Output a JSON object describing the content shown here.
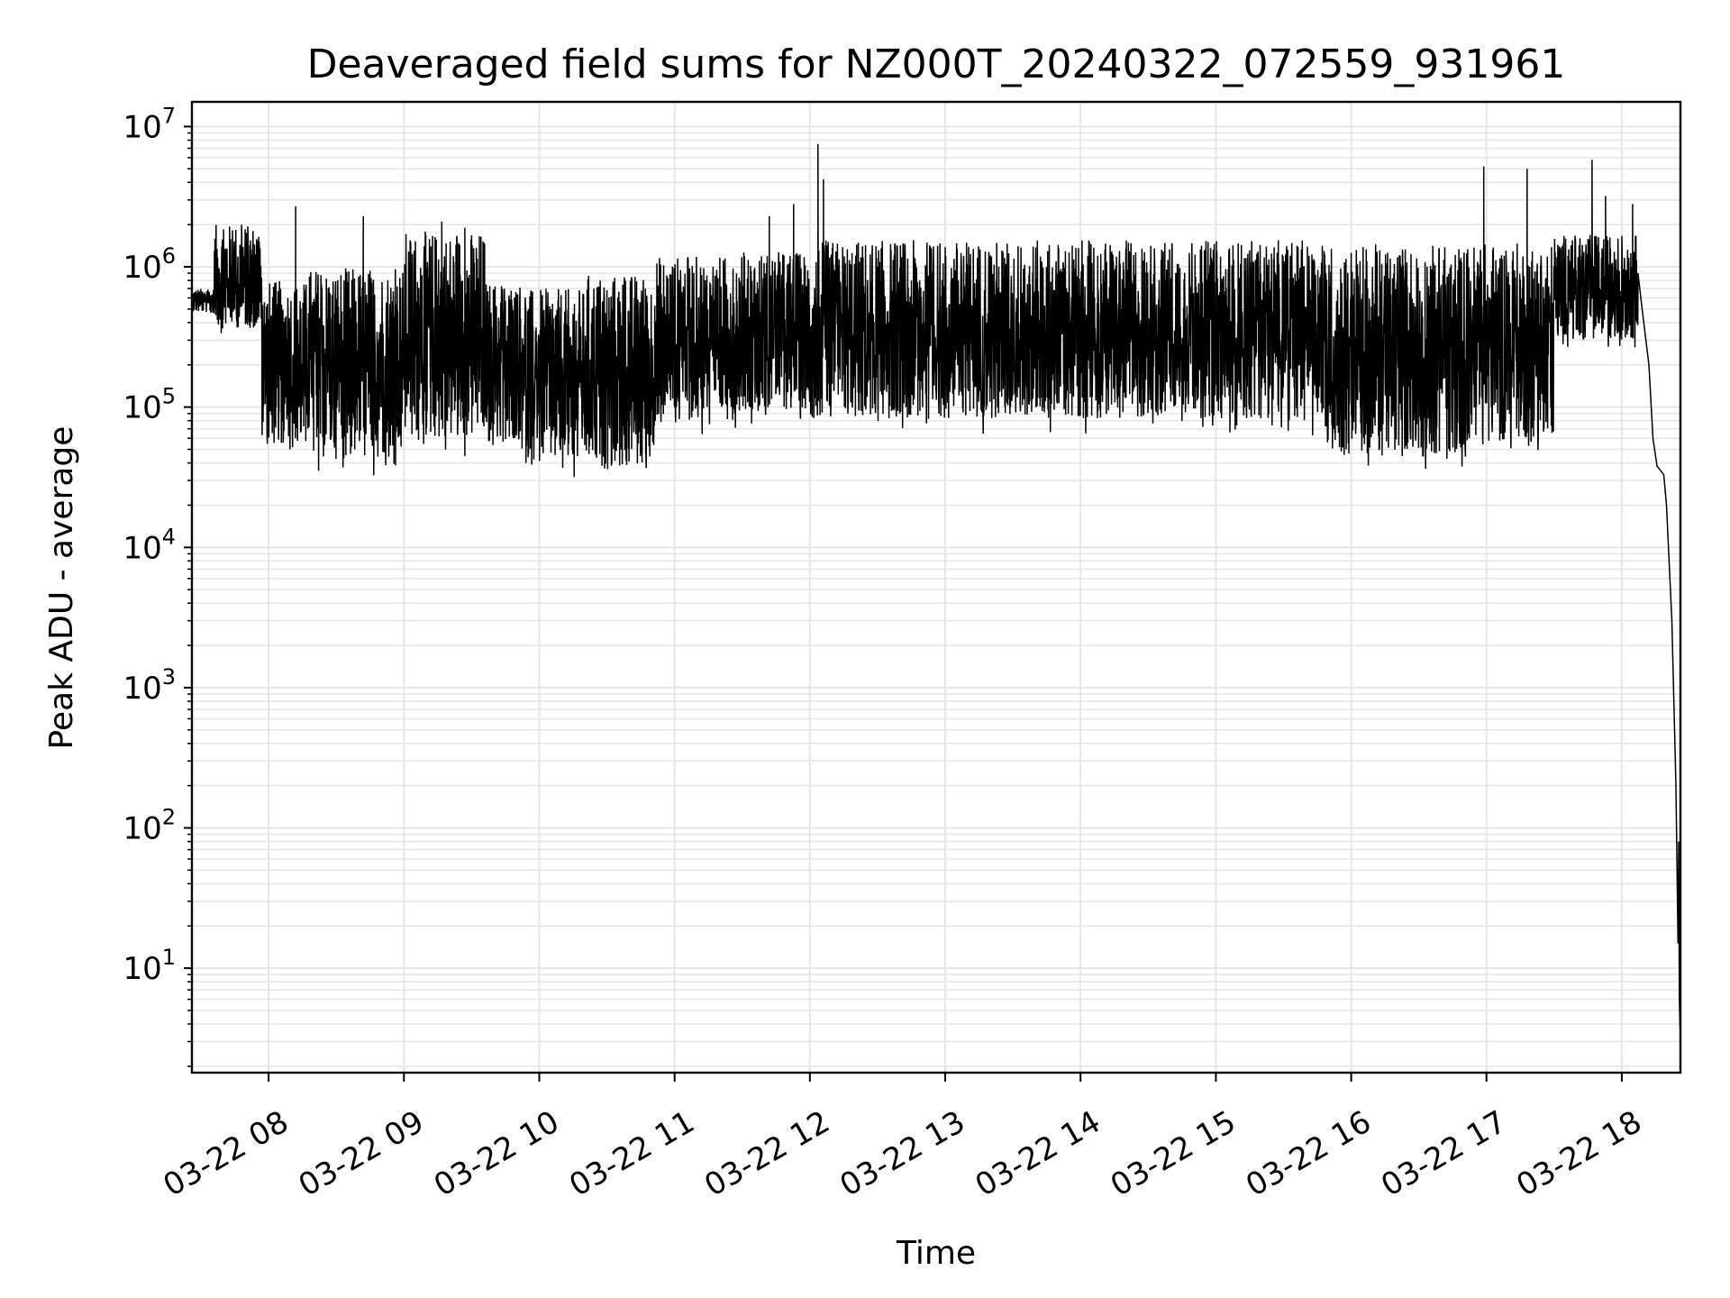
{
  "chart_data": {
    "type": "line",
    "title": "Deaveraged field sums for NZ000T_20240322_072559_931961",
    "xlabel": "Time",
    "ylabel": "Peak ADU - average",
    "yscale": "log",
    "ylim": [
      1.8,
      15000000
    ],
    "xlim_hours": [
      7.4333,
      18.4333
    ],
    "x_ticks": [
      {
        "hour": 8,
        "label": "03-22 08"
      },
      {
        "hour": 9,
        "label": "03-22 09"
      },
      {
        "hour": 10,
        "label": "03-22 10"
      },
      {
        "hour": 11,
        "label": "03-22 11"
      },
      {
        "hour": 12,
        "label": "03-22 12"
      },
      {
        "hour": 13,
        "label": "03-22 13"
      },
      {
        "hour": 14,
        "label": "03-22 14"
      },
      {
        "hour": 15,
        "label": "03-22 15"
      },
      {
        "hour": 16,
        "label": "03-22 16"
      },
      {
        "hour": 17,
        "label": "03-22 17"
      },
      {
        "hour": 18,
        "label": "03-22 18"
      }
    ],
    "y_ticks": [
      {
        "value": 10,
        "base": "10",
        "exp": "1"
      },
      {
        "value": 100,
        "base": "10",
        "exp": "2"
      },
      {
        "value": 1000,
        "base": "10",
        "exp": "3"
      },
      {
        "value": 10000,
        "base": "10",
        "exp": "4"
      },
      {
        "value": 100000,
        "base": "10",
        "exp": "5"
      },
      {
        "value": 1000000,
        "base": "10",
        "exp": "6"
      },
      {
        "value": 10000000,
        "base": "10",
        "exp": "7"
      }
    ],
    "grid": true,
    "line_color": "#000000",
    "grid_color": "#e6e6e6",
    "series": [
      {
        "name": "field sums",
        "segments": [
          {
            "h0": 7.43,
            "h1": 7.6,
            "lo": 450000,
            "hi": 700000
          },
          {
            "h0": 7.6,
            "h1": 7.95,
            "lo": 300000,
            "hi": 2000000
          },
          {
            "h0": 7.95,
            "h1": 8.3,
            "lo": 40000,
            "hi": 800000
          },
          {
            "h0": 8.3,
            "h1": 9.0,
            "lo": 30000,
            "hi": 1000000
          },
          {
            "h0": 9.0,
            "h1": 9.6,
            "lo": 40000,
            "hi": 1800000
          },
          {
            "h0": 9.6,
            "h1": 9.9,
            "lo": 40000,
            "hi": 800000
          },
          {
            "h0": 9.9,
            "h1": 10.35,
            "lo": 28000,
            "hi": 700000
          },
          {
            "h0": 10.35,
            "h1": 10.85,
            "lo": 25000,
            "hi": 900000
          },
          {
            "h0": 10.85,
            "h1": 11.45,
            "lo": 60000,
            "hi": 1200000
          },
          {
            "h0": 11.45,
            "h1": 12.0,
            "lo": 70000,
            "hi": 1300000
          },
          {
            "h0": 12.0,
            "h1": 15.8,
            "lo": 60000,
            "hi": 1550000
          },
          {
            "h0": 15.8,
            "h1": 16.9,
            "lo": 30000,
            "hi": 1450000
          },
          {
            "h0": 16.9,
            "h1": 17.5,
            "lo": 40000,
            "hi": 1500000
          },
          {
            "h0": 17.5,
            "h1": 18.12,
            "lo": 250000,
            "hi": 1700000
          }
        ],
        "spikes": [
          {
            "hour": 7.63,
            "value": 900000
          },
          {
            "hour": 7.8,
            "value": 2000000
          },
          {
            "hour": 8.2,
            "value": 2700000
          },
          {
            "hour": 8.7,
            "value": 2300000
          },
          {
            "hour": 9.28,
            "value": 2100000
          },
          {
            "hour": 9.45,
            "value": 1900000
          },
          {
            "hour": 11.7,
            "value": 2300000
          },
          {
            "hour": 11.88,
            "value": 2800000
          },
          {
            "hour": 12.06,
            "value": 7500000
          },
          {
            "hour": 12.1,
            "value": 4200000
          },
          {
            "hour": 16.98,
            "value": 5200000
          },
          {
            "hour": 17.3,
            "value": 5000000
          },
          {
            "hour": 17.78,
            "value": 5800000
          },
          {
            "hour": 17.88,
            "value": 3200000
          },
          {
            "hour": 18.08,
            "value": 2800000
          },
          {
            "hour": 18.13,
            "value": 2100000
          }
        ],
        "tail": [
          {
            "hour": 18.12,
            "value": 900000
          },
          {
            "hour": 18.15,
            "value": 500000
          },
          {
            "hour": 18.2,
            "value": 200000
          },
          {
            "hour": 18.23,
            "value": 60000
          },
          {
            "hour": 18.26,
            "value": 38000
          },
          {
            "hour": 18.31,
            "value": 33000
          },
          {
            "hour": 18.33,
            "value": 20000
          },
          {
            "hour": 18.37,
            "value": 3000
          },
          {
            "hour": 18.4,
            "value": 200
          },
          {
            "hour": 18.415,
            "value": 15
          },
          {
            "hour": 18.42,
            "value": 80
          },
          {
            "hour": 18.425,
            "value": 6
          },
          {
            "hour": 18.43,
            "value": 3.8
          }
        ]
      }
    ]
  }
}
